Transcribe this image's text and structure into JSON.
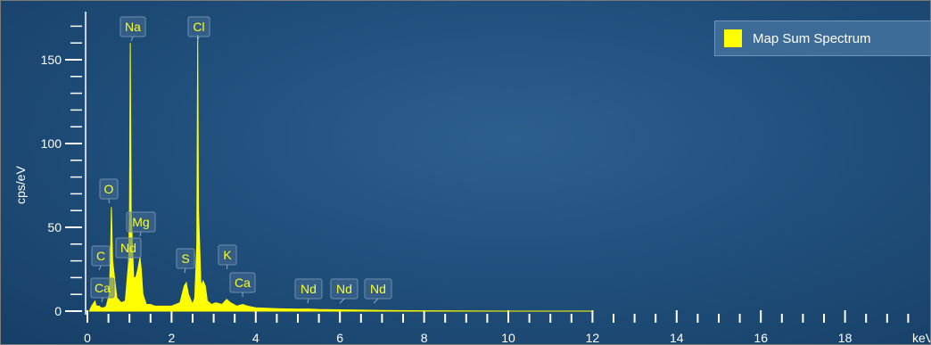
{
  "chart_data": {
    "type": "line",
    "title": "",
    "xlabel": "keV",
    "ylabel": "cps/eV",
    "xlim": [
      0,
      20
    ],
    "ylim": [
      0,
      175
    ],
    "x_ticks": [
      "0",
      "2",
      "4",
      "6",
      "8",
      "10",
      "12",
      "14",
      "16",
      "18"
    ],
    "y_ticks": [
      "0",
      "50",
      "100",
      "150"
    ],
    "legend": {
      "position": "top-right",
      "entries": [
        "Map Sum Spectrum"
      ]
    },
    "series": [
      {
        "name": "Map Sum Spectrum",
        "color": "#ffff00",
        "x": [
          0.05,
          0.1,
          0.18,
          0.2,
          0.22,
          0.28,
          0.32,
          0.4,
          0.45,
          0.52,
          0.55,
          0.57,
          0.6,
          0.7,
          0.8,
          0.9,
          0.98,
          1.0,
          1.02,
          1.04,
          1.1,
          1.15,
          1.2,
          1.25,
          1.28,
          1.32,
          1.4,
          1.5,
          1.6,
          1.7,
          1.8,
          2.0,
          2.2,
          2.3,
          2.35,
          2.4,
          2.5,
          2.55,
          2.6,
          2.62,
          2.64,
          2.7,
          2.75,
          2.8,
          2.85,
          2.95,
          3.05,
          3.2,
          3.31,
          3.4,
          3.55,
          3.69,
          3.8,
          4.0,
          4.5,
          5.0,
          5.23,
          5.5,
          6.0,
          6.5,
          7.0,
          8.0,
          10.0,
          12.0
        ],
        "y": [
          0,
          3,
          6,
          4,
          3,
          3,
          2,
          2,
          3,
          10,
          35,
          62,
          30,
          8,
          5,
          6,
          30,
          60,
          160,
          60,
          20,
          20,
          25,
          32,
          25,
          10,
          4,
          4,
          3,
          3,
          3,
          3,
          5,
          15,
          17,
          10,
          4,
          8,
          40,
          165,
          60,
          15,
          18,
          15,
          6,
          4,
          5,
          4,
          7,
          5,
          3,
          4,
          3,
          2,
          1.5,
          1.2,
          1.3,
          1,
          0.8,
          0.6,
          0.4,
          0.2,
          0,
          0
        ]
      }
    ],
    "annotations": [
      {
        "text": "Na",
        "x": 1.04
      },
      {
        "text": "Cl",
        "x": 2.62
      },
      {
        "text": "O",
        "x": 0.52
      },
      {
        "text": "Mg",
        "x": 1.25
      },
      {
        "text": "Nd",
        "x": 0.98
      },
      {
        "text": "C",
        "x": 0.28
      },
      {
        "text": "Ca",
        "x": 0.34
      },
      {
        "text": "S",
        "x": 2.31
      },
      {
        "text": "K",
        "x": 3.31
      },
      {
        "text": "Ca",
        "x": 3.69
      },
      {
        "text": "Nd",
        "x": 5.23
      },
      {
        "text": "Nd",
        "x": 6.0
      },
      {
        "text": "Nd",
        "x": 6.8
      }
    ]
  }
}
